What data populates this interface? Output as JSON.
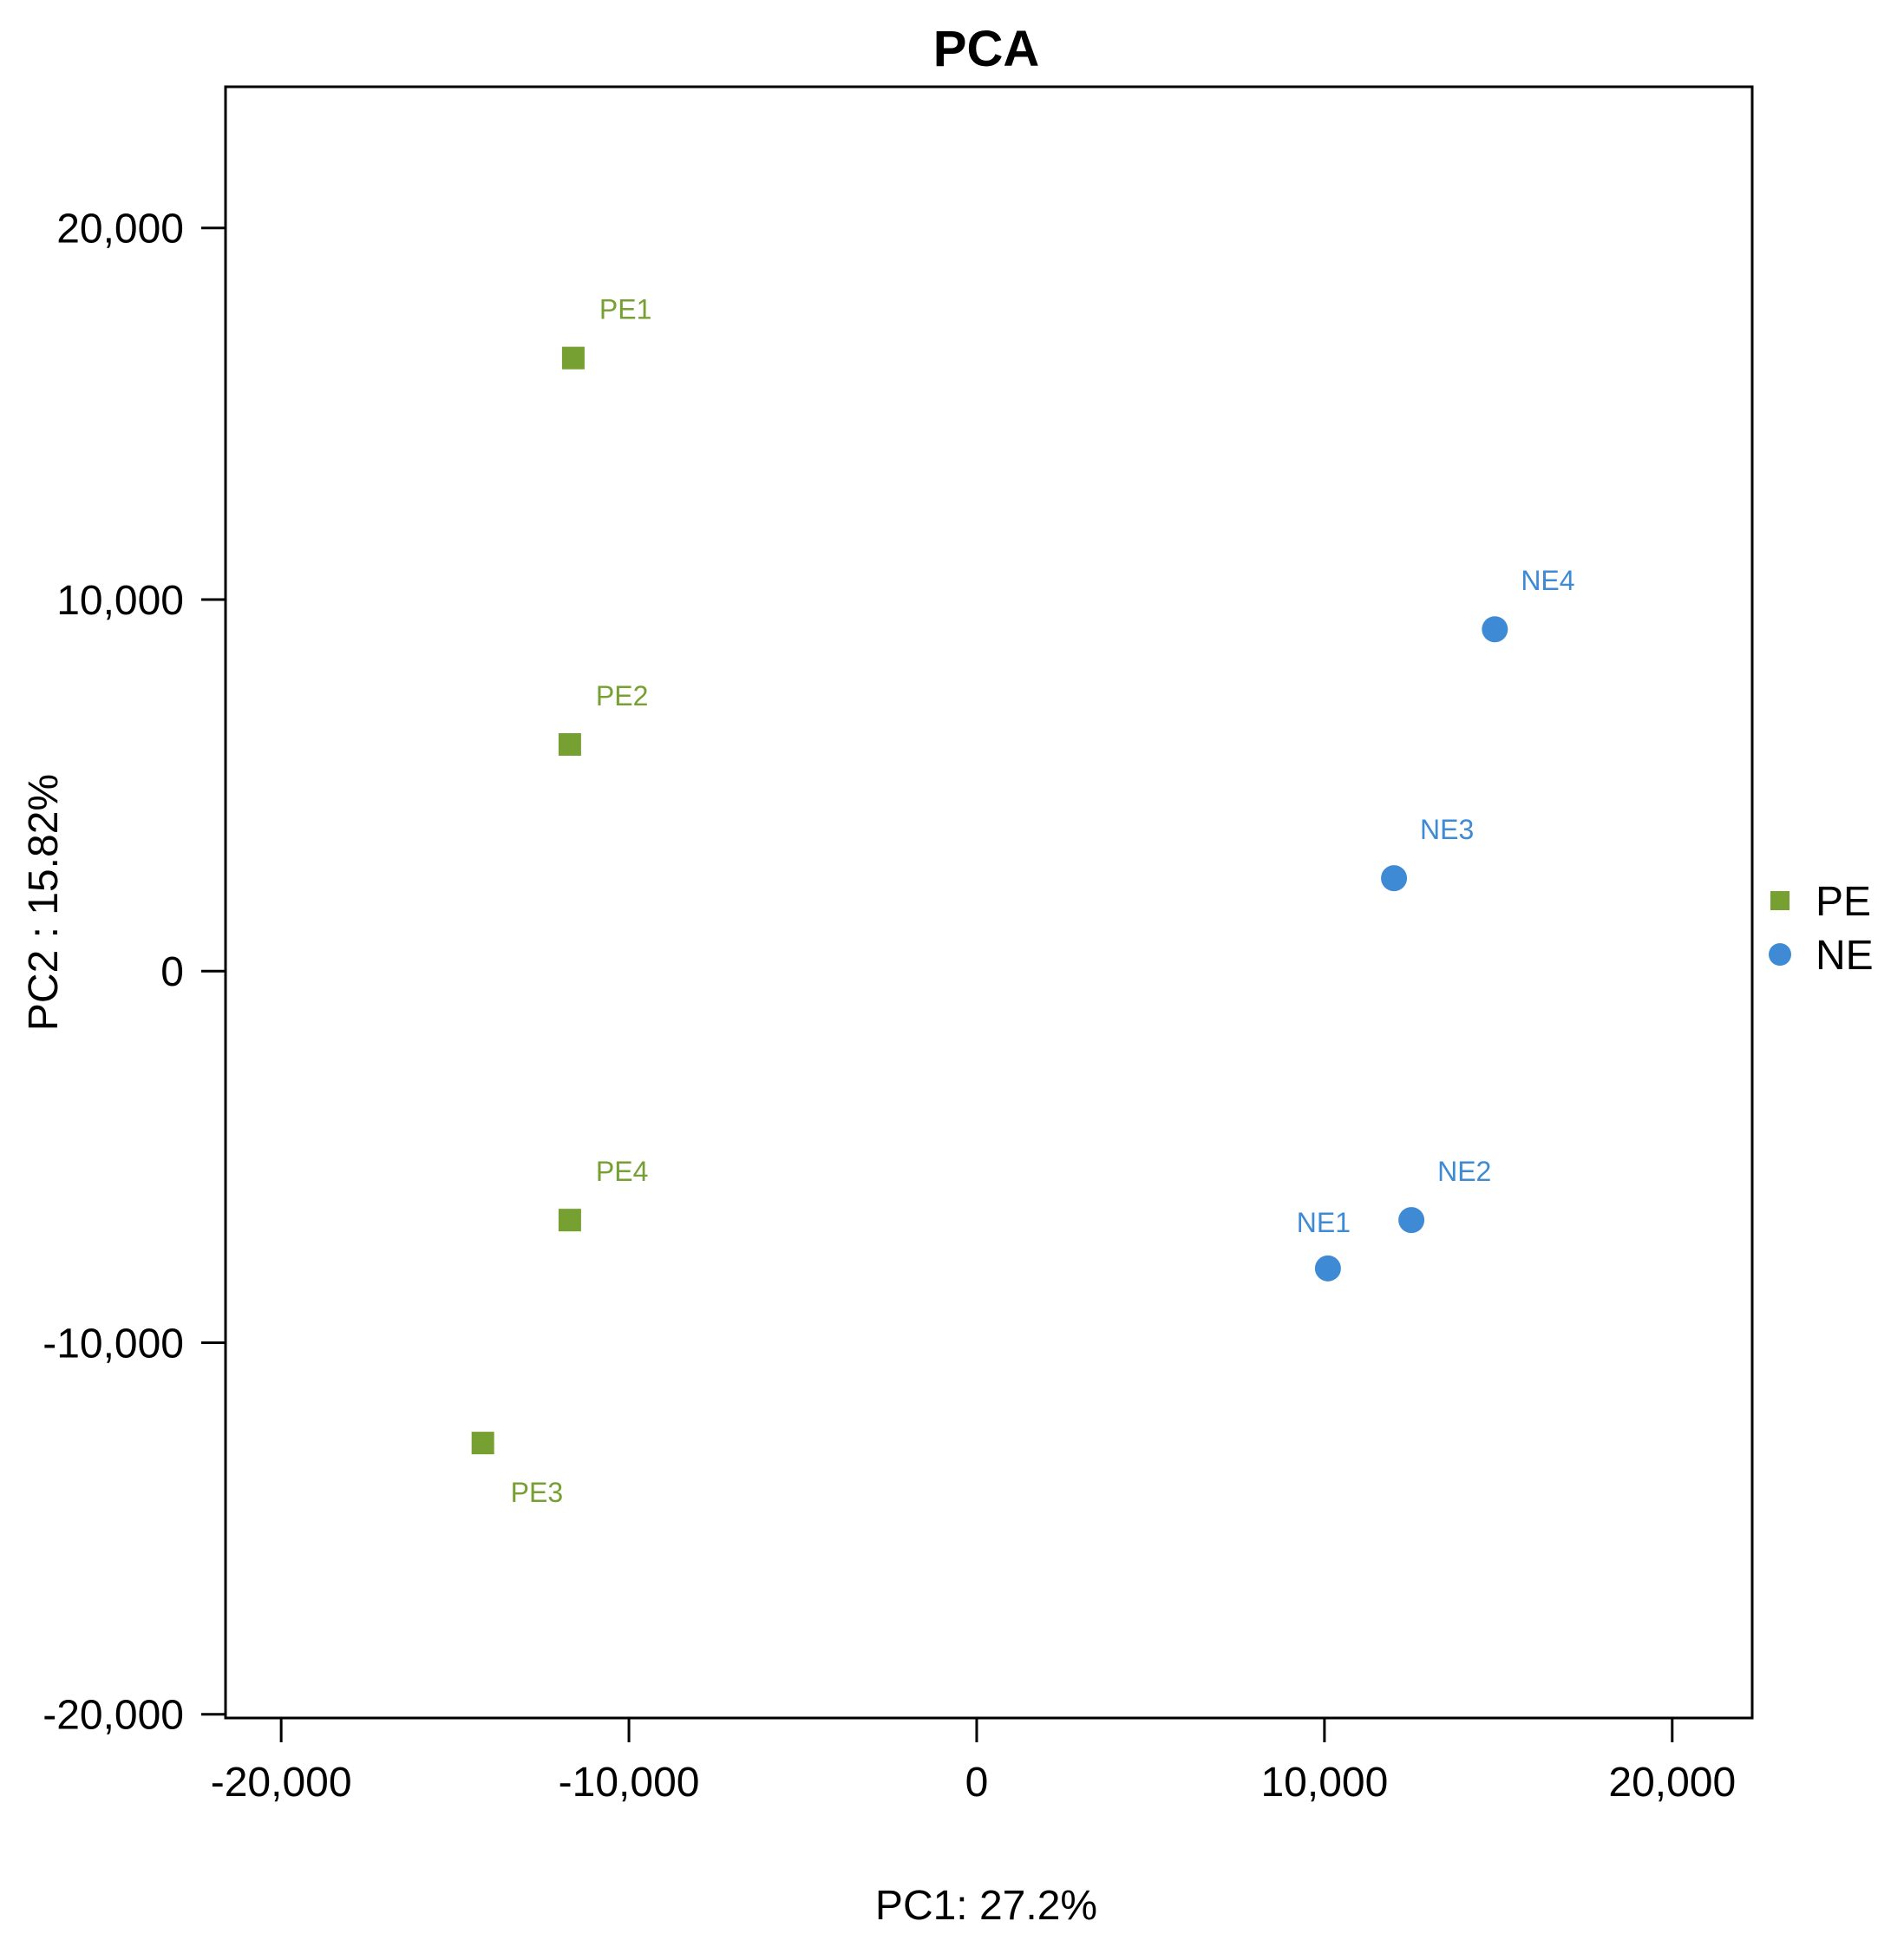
{
  "chart_data": {
    "type": "scatter",
    "title": "PCA",
    "xlabel": "PC1: 27.2%",
    "ylabel": "PC2 :  15.82%",
    "xlim": [
      -21600,
      22300
    ],
    "ylim": [
      -20100,
      23800
    ],
    "xticks": [
      -20000,
      -10000,
      0,
      10000,
      20000
    ],
    "xtick_labels": [
      "-20,000",
      "-10,000",
      "0",
      "10,000",
      "20,000"
    ],
    "yticks": [
      20000,
      10000,
      0,
      -10000,
      -20000
    ],
    "ytick_labels": [
      "20,000",
      "10,000",
      "0",
      "-10,000",
      "-20,000"
    ],
    "grid": false,
    "legend_position": "right",
    "series": [
      {
        "name": "PE",
        "marker": "square",
        "color": "#77a032",
        "points": [
          {
            "label": "PE1",
            "x": -11600,
            "y": 16500,
            "label_pos": "above-right"
          },
          {
            "label": "PE2",
            "x": -11700,
            "y": 6100,
            "label_pos": "above-right"
          },
          {
            "label": "PE4",
            "x": -11700,
            "y": -6700,
            "label_pos": "above-right"
          },
          {
            "label": "PE3",
            "x": -14200,
            "y": -12700,
            "label_pos": "below-right"
          }
        ]
      },
      {
        "name": "NE",
        "marker": "circle",
        "color": "#3f8ad4",
        "points": [
          {
            "label": "NE4",
            "x": 14900,
            "y": 9200,
            "label_pos": "above-right"
          },
          {
            "label": "NE3",
            "x": 12000,
            "y": 2500,
            "label_pos": "above-right"
          },
          {
            "label": "NE2",
            "x": 12500,
            "y": -6700,
            "label_pos": "above-right"
          },
          {
            "label": "NE1",
            "x": 10100,
            "y": -8000,
            "label_pos": "above"
          }
        ]
      }
    ]
  }
}
